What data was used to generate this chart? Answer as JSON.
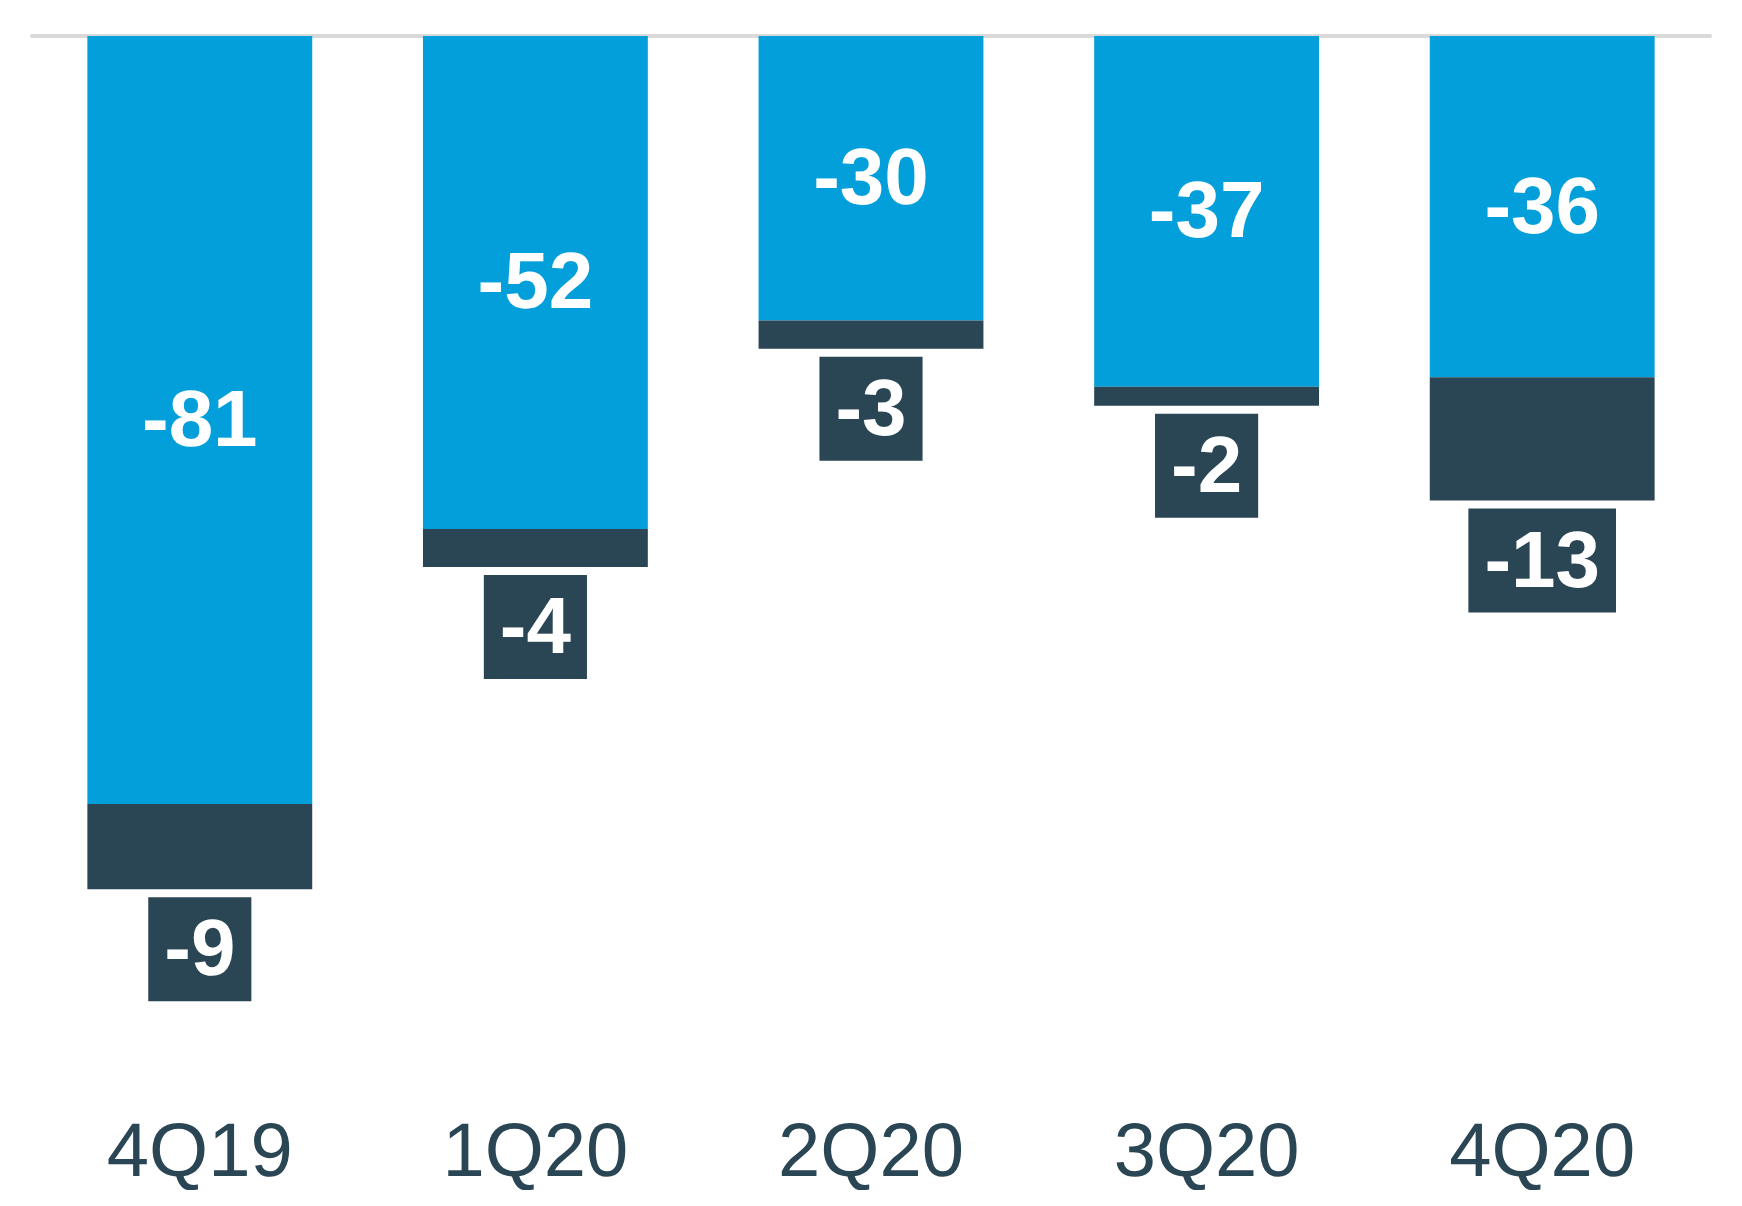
{
  "chart_data": {
    "type": "bar",
    "stacked": true,
    "data_labels": true,
    "grid": false,
    "categories": [
      "4Q19",
      "1Q20",
      "2Q20",
      "3Q20",
      "4Q20"
    ],
    "series": [
      {
        "color": "#039fda",
        "values": [
          -81,
          -52,
          -30,
          -37,
          -36
        ]
      },
      {
        "color": "#2a4553",
        "values": [
          -9,
          -4,
          -3,
          -2,
          -13
        ]
      }
    ]
  }
}
